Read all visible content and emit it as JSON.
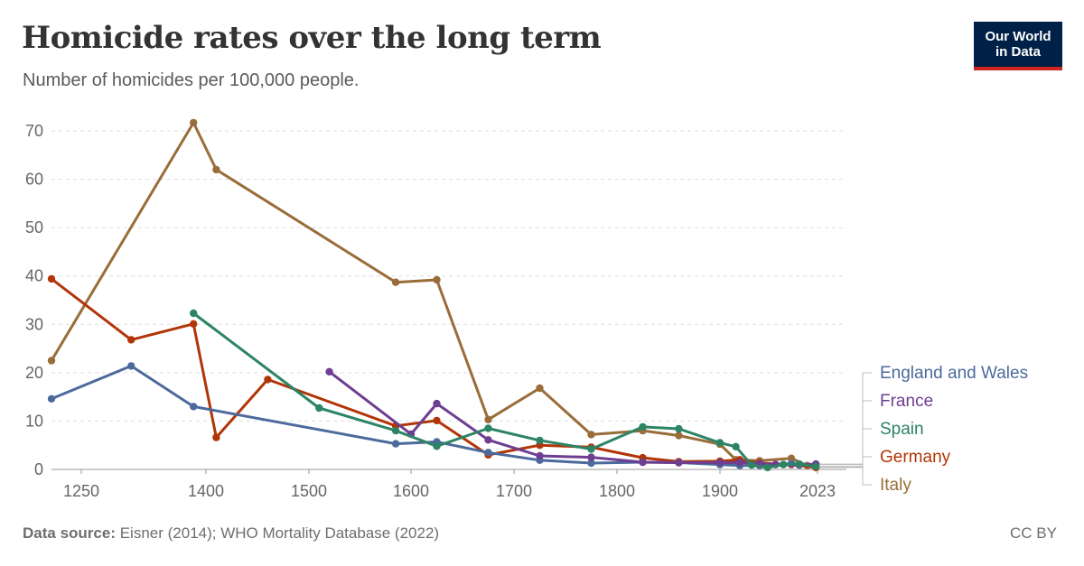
{
  "header": {
    "title": "Homicide rates over the long term",
    "subtitle": "Number of homicides per 100,000 people."
  },
  "logo": {
    "line1": "Our World",
    "line2": "in Data"
  },
  "footer": {
    "source_label": "Data source:",
    "source_text": "Eisner (2014); WHO Mortality Database (2022)",
    "license": "CC BY"
  },
  "colors": {
    "England and Wales": "#4c6a9c",
    "France": "#6d3e91",
    "Spain": "#2c8465",
    "Germany": "#b13507",
    "Italy": "#996d39"
  },
  "chart_data": {
    "type": "line",
    "xlabel": "",
    "ylabel": "",
    "xlim": [
      1235,
      2023
    ],
    "ylim": [
      0,
      70
    ],
    "x_ticks": [
      1250,
      1400,
      1500,
      1600,
      1700,
      1800,
      1900,
      2023
    ],
    "y_ticks": [
      0,
      10,
      20,
      30,
      40,
      50,
      60,
      70
    ],
    "grid": "horizontal dashed",
    "legend": "right",
    "series": [
      {
        "name": "Italy",
        "points": [
          [
            1235,
            22.5
          ],
          [
            1310,
            null
          ],
          [
            1385,
            71.7
          ],
          [
            1410,
            62
          ],
          [
            1585,
            38.7
          ],
          [
            1625,
            39.2
          ],
          [
            1675,
            10.3
          ],
          [
            1725,
            16.8
          ],
          [
            1775,
            7.2
          ],
          [
            1825,
            8
          ],
          [
            1860,
            7
          ],
          [
            1900,
            5.2
          ],
          [
            1920,
            2
          ],
          [
            1950,
            1.8
          ],
          [
            1990,
            2.3
          ],
          [
            2010,
            0.8
          ],
          [
            2021,
            0.5
          ]
        ]
      },
      {
        "name": "Germany",
        "points": [
          [
            1235,
            39.4
          ],
          [
            1310,
            26.8
          ],
          [
            1385,
            30.1
          ],
          [
            1410,
            6.6
          ],
          [
            1460,
            18.6
          ],
          [
            1585,
            9
          ],
          [
            1625,
            10.1
          ],
          [
            1675,
            3
          ],
          [
            1725,
            5
          ],
          [
            1775,
            4.6
          ],
          [
            1825,
            2.4
          ],
          [
            1860,
            1.6
          ],
          [
            1900,
            1.7
          ],
          [
            1925,
            2
          ],
          [
            1950,
            1.3
          ],
          [
            1990,
            1
          ],
          [
            2021,
            0.4
          ]
        ]
      },
      {
        "name": "England and Wales",
        "points": [
          [
            1235,
            14.6
          ],
          [
            1310,
            21.4
          ],
          [
            1385,
            13
          ],
          [
            1585,
            5.3
          ],
          [
            1625,
            5.7
          ],
          [
            1675,
            3.5
          ],
          [
            1725,
            1.9
          ],
          [
            1775,
            1.3
          ],
          [
            1825,
            1.5
          ],
          [
            1860,
            1.4
          ],
          [
            1900,
            1
          ],
          [
            1925,
            0.8
          ],
          [
            1950,
            0.8
          ],
          [
            1990,
            1.2
          ],
          [
            2021,
            1
          ]
        ]
      },
      {
        "name": "France",
        "points": [
          [
            1520,
            20.2
          ],
          [
            1600,
            7.3
          ],
          [
            1625,
            13.6
          ],
          [
            1675,
            6.1
          ],
          [
            1725,
            2.8
          ],
          [
            1775,
            2.5
          ],
          [
            1825,
            1.5
          ],
          [
            1860,
            1.4
          ],
          [
            1900,
            1.4
          ],
          [
            1925,
            1.4
          ],
          [
            1950,
            1.2
          ],
          [
            1970,
            1
          ],
          [
            2000,
            0.9
          ],
          [
            2021,
            1.1
          ]
        ]
      },
      {
        "name": "Spain",
        "points": [
          [
            1385,
            32.3
          ],
          [
            1475,
            null
          ],
          [
            1510,
            12.7
          ],
          [
            1585,
            8
          ],
          [
            1625,
            4.8
          ],
          [
            1675,
            8.5
          ],
          [
            1725,
            6
          ],
          [
            1775,
            4.2
          ],
          [
            1825,
            8.8
          ],
          [
            1860,
            8.4
          ],
          [
            1900,
            5.5
          ],
          [
            1920,
            4.7
          ],
          [
            1940,
            0.9
          ],
          [
            1960,
            0.4
          ],
          [
            1980,
            1
          ],
          [
            2000,
            1.1
          ],
          [
            2021,
            0.6
          ]
        ]
      }
    ]
  }
}
